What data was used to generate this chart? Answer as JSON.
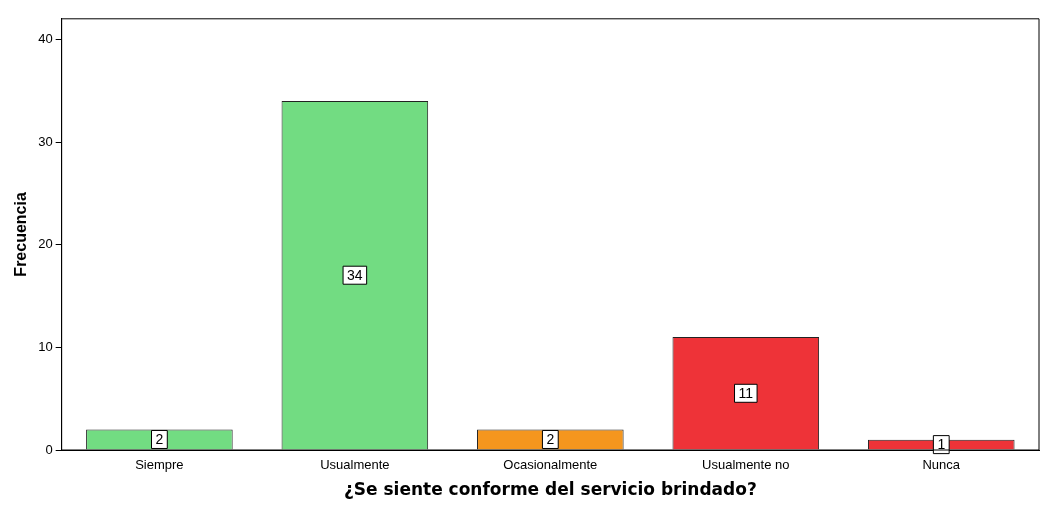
{
  "chart_data": {
    "type": "bar",
    "xlabel": "¿Se siente conforme del servicio brindado?",
    "ylabel": "Frecuencia",
    "categories": [
      "Siempre",
      "Usualmente",
      "Ocasionalmente",
      "Usualmente no",
      "Nunca"
    ],
    "values": [
      2,
      34,
      2,
      11,
      1
    ],
    "colors": [
      "#72dc82",
      "#72dc82",
      "#f5961e",
      "#ee3338",
      "#ee3338"
    ],
    "ylim": [
      0,
      42
    ],
    "yticks": [
      0,
      10,
      20,
      30,
      40
    ],
    "grid": false,
    "legend": false,
    "data_labels": true
  }
}
